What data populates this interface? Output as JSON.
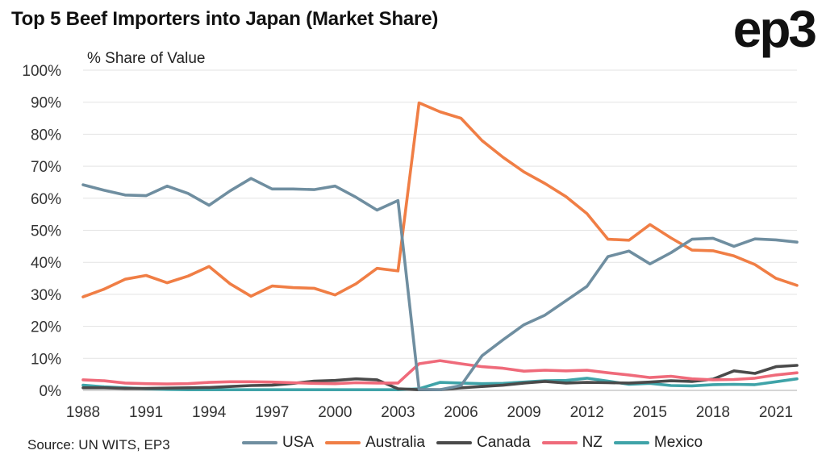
{
  "title": "Top 5 Beef Importers into Japan (Market Share)",
  "logo": "ep3",
  "source": "Source: UN WITS, EP3",
  "chart_data": {
    "type": "line",
    "ylabel": "% Share of Value",
    "xlabel": "",
    "ylim": [
      0,
      100
    ],
    "yticks": [
      "0%",
      "10%",
      "20%",
      "30%",
      "40%",
      "50%",
      "60%",
      "70%",
      "80%",
      "90%",
      "100%"
    ],
    "xticks": [
      "1988",
      "1991",
      "1994",
      "1997",
      "2000",
      "2003",
      "2006",
      "2009",
      "2012",
      "2015",
      "2018",
      "2021"
    ],
    "x": [
      1988,
      1989,
      1990,
      1991,
      1992,
      1993,
      1994,
      1995,
      1996,
      1997,
      1998,
      1999,
      2000,
      2001,
      2002,
      2003,
      2004,
      2005,
      2006,
      2007,
      2008,
      2009,
      2010,
      2011,
      2012,
      2013,
      2014,
      2015,
      2016,
      2017,
      2018,
      2019,
      2020,
      2021,
      2022
    ],
    "grid": "horizontal",
    "legend_position": "bottom",
    "series": [
      {
        "name": "USA",
        "color": "#6f8ea0",
        "values": [
          64.2,
          62.5,
          61,
          60.8,
          63.8,
          61.5,
          57.8,
          62.3,
          66.2,
          62.9,
          62.9,
          62.7,
          63.8,
          60.3,
          56.3,
          59.3,
          0.3,
          0.2,
          1.5,
          10.8,
          15.8,
          20.5,
          23.5,
          28,
          32.5,
          41.8,
          43.5,
          39.5,
          43,
          47.2,
          47.5,
          45,
          47.3,
          47,
          46.3
        ]
      },
      {
        "name": "Australia",
        "color": "#f07e45",
        "values": [
          29.2,
          31.6,
          34.7,
          35.9,
          33.6,
          35.7,
          38.7,
          33.3,
          29.4,
          32.6,
          32.1,
          31.9,
          29.8,
          33.3,
          38.1,
          37.3,
          89.8,
          87,
          85,
          78,
          72.8,
          68.2,
          64.6,
          60.5,
          55.2,
          47.2,
          46.9,
          51.8,
          47.6,
          43.8,
          43.6,
          42,
          39.3,
          35,
          32.8
        ]
      },
      {
        "name": "Canada",
        "color": "#4a4a4a",
        "values": [
          0.8,
          0.8,
          0.6,
          0.6,
          0.7,
          0.8,
          0.9,
          1.2,
          1.5,
          1.6,
          2.2,
          2.9,
          3.1,
          3.6,
          3.3,
          0.5,
          0.2,
          0.2,
          0.8,
          1.2,
          1.6,
          2.3,
          2.8,
          2.3,
          2.5,
          2.4,
          2.3,
          2.6,
          3,
          2.8,
          3.5,
          6.1,
          5.3,
          7.4,
          7.8
        ]
      },
      {
        "name": "NZ",
        "color": "#ef6a7a",
        "values": [
          3.3,
          3,
          2.3,
          2.1,
          2,
          2.1,
          2.5,
          2.7,
          2.7,
          2.6,
          2.4,
          2.2,
          2.1,
          2.4,
          2.3,
          2.3,
          8.3,
          9.3,
          8.3,
          7.4,
          6.9,
          6,
          6.3,
          6.1,
          6.3,
          5.5,
          4.8,
          4,
          4.4,
          3.6,
          3.3,
          3.4,
          3.8,
          4.8,
          5.5
        ]
      },
      {
        "name": "Mexico",
        "color": "#3fa3a8",
        "values": [
          1.6,
          1.1,
          0.8,
          0.5,
          0.3,
          0.2,
          0.2,
          0.2,
          0.2,
          0.2,
          0.2,
          0.2,
          0.2,
          0.2,
          0.2,
          0.2,
          0.5,
          2.5,
          2.3,
          2.1,
          2.2,
          2.6,
          3,
          3.1,
          3.8,
          2.9,
          1.9,
          2.2,
          1.5,
          1.4,
          1.8,
          1.9,
          1.8,
          2.7,
          3.6
        ]
      }
    ]
  }
}
